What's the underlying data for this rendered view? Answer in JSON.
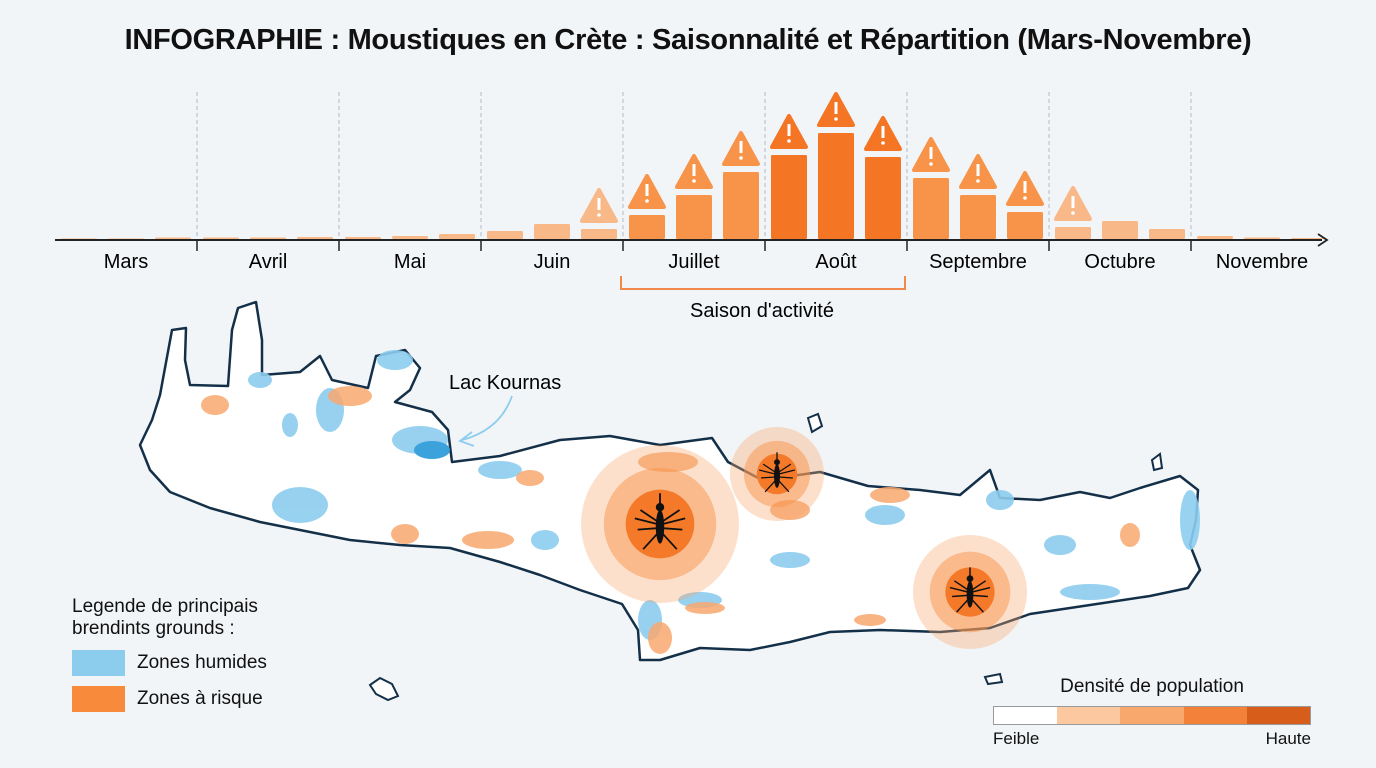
{
  "title": "INFOGRAPHIE : Moustiques en Crète : Saisonnalité et Répartition (Mars-Novembre)",
  "chart_data": {
    "type": "bar",
    "categories": [
      "Mars",
      "Avril",
      "Mai",
      "Juin",
      "Juillet",
      "Août",
      "Septembre",
      "Octubre",
      "Novembre"
    ],
    "bars_per_category": 3,
    "values": [
      [
        0.5,
        0.5,
        1.5
      ],
      [
        1.5,
        1.5,
        2
      ],
      [
        2,
        3,
        5
      ],
      [
        8,
        15,
        10
      ],
      [
        24,
        44,
        67
      ],
      [
        84,
        106,
        82
      ],
      [
        61,
        44,
        27
      ],
      [
        12,
        18,
        10
      ],
      [
        3,
        1.5,
        1
      ]
    ],
    "warning": [
      [
        false,
        false,
        false
      ],
      [
        false,
        false,
        false
      ],
      [
        false,
        false,
        false
      ],
      [
        false,
        false,
        true
      ],
      [
        true,
        true,
        true
      ],
      [
        true,
        true,
        true
      ],
      [
        true,
        true,
        true
      ],
      [
        true,
        false,
        false
      ],
      [
        false,
        false,
        false
      ]
    ],
    "ylim": [
      0,
      110
    ],
    "grid": "vertical dashed month separators",
    "season_bracket": {
      "label": "Saison d'activité",
      "from": "Juillet",
      "to": "Août"
    },
    "colors": {
      "low": "#f8b887",
      "mid": "#f8944a",
      "high": "#f47524",
      "axis": "#222222",
      "bracket": "#f0894a"
    }
  },
  "map": {
    "lake_label": "Lac Kournas",
    "colors": {
      "land": "#ffffff",
      "outline": "#143049",
      "wet": "#8ccdee",
      "risk": "#f8a86e",
      "hotspot": "#f47a2a"
    },
    "hotspot_icon": "mosquito-icon"
  },
  "legend": {
    "title": "Legende de principais brendints grounds :",
    "items": [
      {
        "label": "Zones humides",
        "color": "#8ccdee"
      },
      {
        "label": "Zones à risque",
        "color": "#f88a3c"
      }
    ]
  },
  "density": {
    "title": "Densité de population",
    "low": "Feible",
    "high": "Haute",
    "colors": [
      "#ffffff",
      "#fbc8a0",
      "#f8a86c",
      "#f4813a",
      "#d65e1a"
    ]
  }
}
